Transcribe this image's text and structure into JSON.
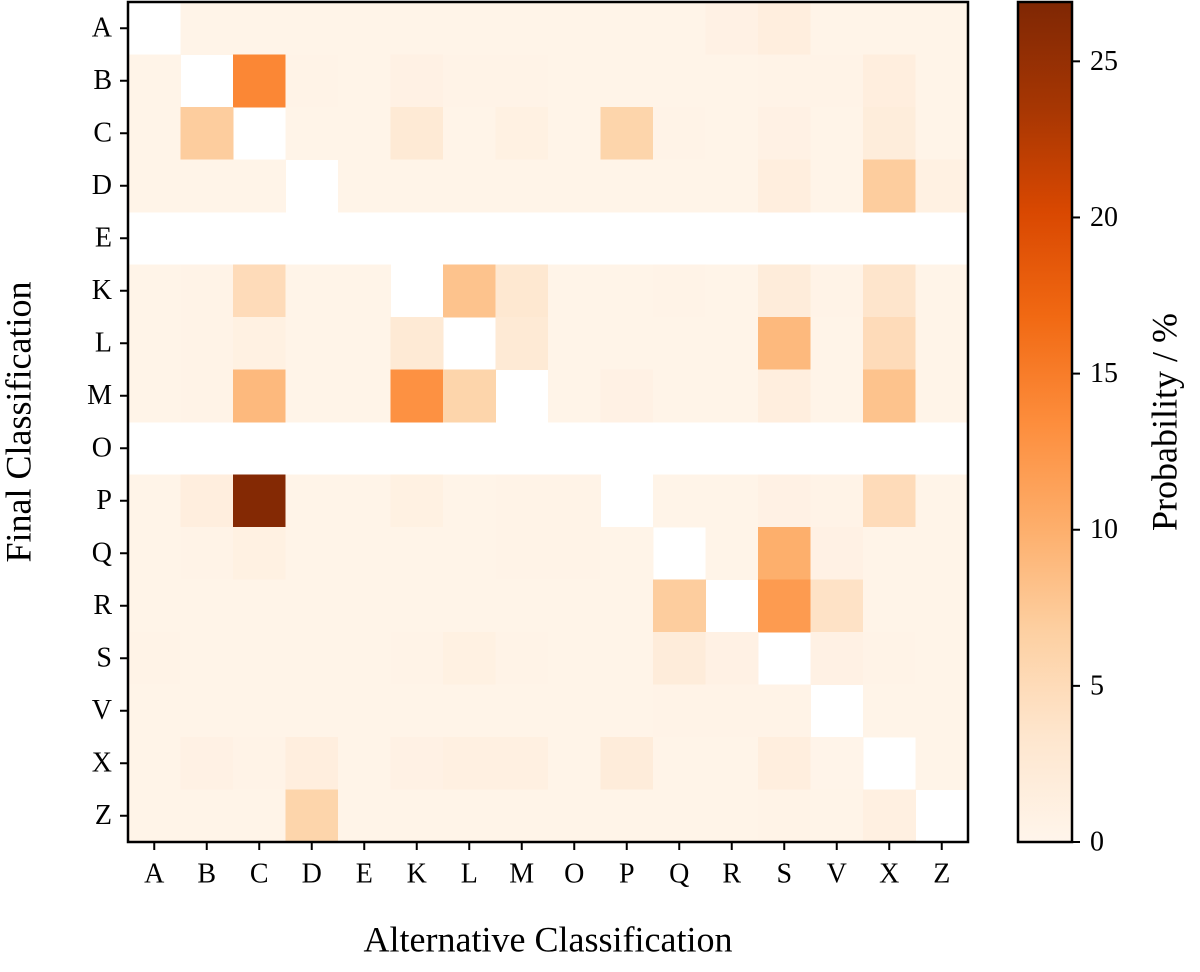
{
  "chart_data": {
    "type": "heatmap",
    "xlabel": "Alternative Classification",
    "ylabel": "Final Classification",
    "x_categories": [
      "A",
      "B",
      "C",
      "D",
      "E",
      "K",
      "L",
      "M",
      "O",
      "P",
      "Q",
      "R",
      "S",
      "V",
      "X",
      "Z"
    ],
    "y_categories": [
      "A",
      "B",
      "C",
      "D",
      "E",
      "K",
      "L",
      "M",
      "O",
      "P",
      "Q",
      "R",
      "S",
      "V",
      "X",
      "Z"
    ],
    "values": [
      [
        null,
        0.3,
        0.3,
        0.3,
        0.3,
        0.3,
        0.3,
        0.3,
        0.3,
        0.3,
        0.3,
        0.8,
        1.5,
        0.3,
        0.3,
        0.3
      ],
      [
        0.3,
        null,
        14,
        0.5,
        0.3,
        0.8,
        0.5,
        0.5,
        0.3,
        0.3,
        0.3,
        0.3,
        0.5,
        0.5,
        1.5,
        0.3
      ],
      [
        0.3,
        7,
        null,
        0.3,
        0.3,
        2.5,
        0.3,
        1,
        0.3,
        6,
        0.5,
        0.3,
        0.8,
        0.3,
        1.8,
        0.3
      ],
      [
        0.3,
        0.3,
        0.3,
        null,
        0.3,
        0.3,
        0.3,
        0.3,
        0.3,
        0.3,
        0.3,
        0.3,
        1.5,
        0.3,
        7,
        1
      ],
      [
        null,
        null,
        null,
        null,
        null,
        null,
        null,
        null,
        null,
        null,
        null,
        null,
        null,
        null,
        null,
        null
      ],
      [
        0.3,
        0.5,
        5,
        0.3,
        0.3,
        null,
        8,
        3,
        0.3,
        0.3,
        0.5,
        0.3,
        2,
        0.5,
        3.5,
        0.3
      ],
      [
        0.3,
        0.5,
        1,
        0.3,
        0.3,
        2.5,
        null,
        2.5,
        0.3,
        0.3,
        0.3,
        0.3,
        9,
        0.3,
        5,
        0.3
      ],
      [
        0.3,
        0.5,
        9,
        0.3,
        0.3,
        13,
        6,
        null,
        0.3,
        0.8,
        0.3,
        0.3,
        1.5,
        0.3,
        8,
        0.3
      ],
      [
        null,
        null,
        null,
        null,
        null,
        null,
        null,
        null,
        null,
        null,
        null,
        null,
        null,
        null,
        null,
        null
      ],
      [
        0.3,
        1.5,
        26.5,
        0.3,
        0.3,
        1,
        0.3,
        0.5,
        0.5,
        null,
        0.3,
        0.3,
        0.8,
        0.5,
        5,
        0.3
      ],
      [
        0.3,
        0.5,
        1,
        0.3,
        0.3,
        0.3,
        0.3,
        0.5,
        0.5,
        0.3,
        null,
        0.3,
        10,
        0.8,
        0.3,
        0.3
      ],
      [
        0.3,
        0.3,
        0.3,
        0.3,
        0.3,
        0.3,
        0.3,
        0.3,
        0.3,
        0.3,
        7,
        null,
        12,
        4,
        0.3,
        0.3
      ],
      [
        0.5,
        0.3,
        0.3,
        0.3,
        0.3,
        0.5,
        1,
        0.5,
        0.3,
        0.3,
        2,
        0.8,
        null,
        0.8,
        0.5,
        0.3
      ],
      [
        0.3,
        0.3,
        0.3,
        0.3,
        0.3,
        0.3,
        0.3,
        0.3,
        0.3,
        0.3,
        0.5,
        0.5,
        0.5,
        null,
        0.3,
        0.3
      ],
      [
        0.3,
        0.8,
        0.5,
        1.5,
        0.3,
        0.8,
        1.2,
        1.2,
        0.3,
        2,
        0.3,
        0.3,
        1.5,
        0.2,
        null,
        0.3
      ],
      [
        0.3,
        0.3,
        0.3,
        6,
        0.3,
        0.3,
        0.3,
        0.3,
        0.3,
        0.3,
        0.3,
        0.3,
        0.5,
        0.3,
        1.2,
        null
      ]
    ],
    "colormap": [
      "#fff5eb",
      "#fee6ce",
      "#fdd0a2",
      "#fdae6b",
      "#fd8d3c",
      "#f16913",
      "#d94801",
      "#a63603",
      "#7f2704"
    ],
    "clim": [
      0,
      26.9
    ],
    "colorbar_ticks": [
      0,
      5,
      10,
      15,
      20,
      25
    ],
    "colorbar_label": "Probability / %"
  }
}
